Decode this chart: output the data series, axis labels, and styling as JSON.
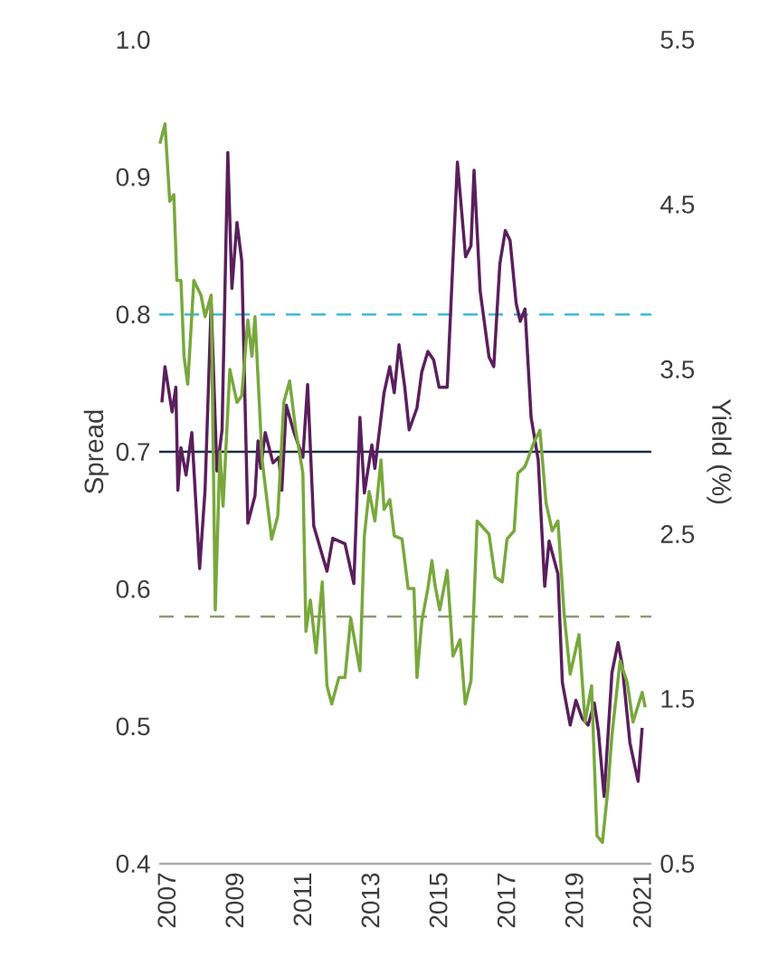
{
  "chart_data": {
    "type": "line",
    "ylabel": "Spread",
    "y2label": "Yield (%)",
    "xlim": [
      2006.78,
      2021.27
    ],
    "xticks": [
      2007,
      2009,
      2011,
      2013,
      2015,
      2017,
      2019,
      2021
    ],
    "ylim": [
      0.4,
      1.0
    ],
    "yticks": [
      0.4,
      0.5,
      0.6,
      0.7,
      0.8,
      0.9,
      {
        "value": 1.0,
        "label": "1.0"
      }
    ],
    "y2lim": [
      0.5,
      5.5
    ],
    "y2ticks": [
      0.5,
      1.5,
      2.5,
      3.5,
      4.5,
      5.5
    ],
    "series": [
      {
        "color": "#5a1f5c",
        "axis": "y",
        "x": [
          2006.86,
          2006.95,
          2007.16,
          2007.27,
          2007.33,
          2007.42,
          2007.57,
          2007.74,
          2007.97,
          2008.13,
          2008.31,
          2008.48,
          2008.63,
          2008.8,
          2008.92,
          2009.07,
          2009.21,
          2009.39,
          2009.6,
          2009.69,
          2009.77,
          2009.9,
          2010.13,
          2010.3,
          2010.39,
          2010.52,
          2010.75,
          2011.01,
          2011.15,
          2011.33,
          2011.72,
          2011.89,
          2012.25,
          2012.51,
          2012.69,
          2012.82,
          2013.04,
          2013.13,
          2013.4,
          2013.57,
          2013.7,
          2013.84,
          2014.01,
          2014.14,
          2014.37,
          2014.51,
          2014.69,
          2014.86,
          2015.02,
          2015.26,
          2015.56,
          2015.8,
          2015.96,
          2016.05,
          2016.23,
          2016.49,
          2016.63,
          2016.81,
          2016.97,
          2017.11,
          2017.29,
          2017.41,
          2017.55,
          2017.73,
          2017.94,
          2018.13,
          2018.26,
          2018.52,
          2018.65,
          2018.88,
          2019.05,
          2019.23,
          2019.41,
          2019.59,
          2019.71,
          2019.88,
          2020.11,
          2020.29,
          2020.41,
          2020.64,
          2020.88,
          2021.0
        ],
        "values": [
          0.736,
          0.762,
          0.729,
          0.747,
          0.672,
          0.703,
          0.683,
          0.714,
          0.615,
          0.672,
          0.808,
          0.686,
          0.716,
          0.918,
          0.819,
          0.867,
          0.839,
          0.648,
          0.668,
          0.708,
          0.688,
          0.714,
          0.692,
          0.696,
          0.672,
          0.734,
          0.714,
          0.696,
          0.749,
          0.646,
          0.613,
          0.637,
          0.633,
          0.604,
          0.725,
          0.67,
          0.705,
          0.688,
          0.743,
          0.762,
          0.743,
          0.778,
          0.747,
          0.716,
          0.732,
          0.758,
          0.773,
          0.767,
          0.747,
          0.747,
          0.911,
          0.842,
          0.85,
          0.905,
          0.817,
          0.769,
          0.762,
          0.837,
          0.861,
          0.854,
          0.808,
          0.795,
          0.804,
          0.725,
          0.694,
          0.602,
          0.635,
          0.611,
          0.532,
          0.501,
          0.519,
          0.506,
          0.501,
          0.517,
          0.497,
          0.449,
          0.539,
          0.561,
          0.545,
          0.488,
          0.46,
          0.499
        ]
      },
      {
        "color": "#78a83c",
        "axis": "y2",
        "x": [
          2006.8,
          2006.95,
          2007.09,
          2007.21,
          2007.3,
          2007.42,
          2007.51,
          2007.62,
          2007.8,
          2008.01,
          2008.13,
          2008.31,
          2008.43,
          2008.57,
          2008.66,
          2008.86,
          2009.07,
          2009.21,
          2009.39,
          2009.51,
          2009.6,
          2009.81,
          2010.09,
          2010.27,
          2010.45,
          2010.62,
          2010.8,
          2011.01,
          2011.1,
          2011.23,
          2011.4,
          2011.58,
          2011.72,
          2011.86,
          2012.07,
          2012.25,
          2012.42,
          2012.69,
          2012.82,
          2012.96,
          2013.13,
          2013.31,
          2013.4,
          2013.57,
          2013.7,
          2013.93,
          2014.11,
          2014.28,
          2014.37,
          2014.51,
          2014.69,
          2014.81,
          2014.9,
          2015.04,
          2015.26,
          2015.43,
          2015.64,
          2015.79,
          2015.96,
          2016.14,
          2016.49,
          2016.67,
          2016.88,
          2017.02,
          2017.23,
          2017.34,
          2017.55,
          2017.82,
          2017.99,
          2018.17,
          2018.35,
          2018.52,
          2018.7,
          2018.88,
          2019.14,
          2019.32,
          2019.51,
          2019.67,
          2019.83,
          2019.99,
          2020.11,
          2020.35,
          2020.56,
          2020.73,
          2021.0,
          2021.09
        ],
        "values": [
          4.87,
          4.99,
          4.52,
          4.56,
          4.04,
          4.04,
          3.58,
          3.41,
          4.04,
          3.95,
          3.82,
          3.95,
          2.04,
          3.0,
          2.67,
          3.5,
          3.3,
          3.34,
          3.8,
          3.58,
          3.82,
          2.95,
          2.47,
          2.61,
          3.3,
          3.43,
          3.13,
          2.87,
          1.91,
          2.1,
          1.78,
          2.21,
          1.58,
          1.47,
          1.63,
          1.63,
          1.99,
          1.67,
          2.49,
          2.76,
          2.58,
          2.95,
          2.65,
          2.71,
          2.49,
          2.47,
          2.17,
          2.17,
          1.63,
          1.97,
          2.17,
          2.34,
          2.19,
          2.04,
          2.28,
          1.76,
          1.86,
          1.47,
          1.61,
          2.58,
          2.5,
          2.24,
          2.21,
          2.47,
          2.52,
          2.87,
          2.91,
          3.06,
          3.13,
          2.69,
          2.52,
          2.58,
          2.02,
          1.65,
          1.89,
          1.36,
          1.58,
          0.67,
          0.63,
          0.95,
          1.28,
          1.73,
          1.6,
          1.36,
          1.54,
          1.45
        ]
      }
    ],
    "ref_lines": [
      {
        "axis": "y",
        "value": 0.8,
        "color": "#29b5d6",
        "line_style": "dashed"
      },
      {
        "axis": "y",
        "value": 0.7,
        "color": "#1b2f45",
        "line_style": "solid"
      },
      {
        "axis": "y2",
        "value": 2.0,
        "color": "#8c9a70",
        "line_style": "dashed"
      }
    ]
  }
}
